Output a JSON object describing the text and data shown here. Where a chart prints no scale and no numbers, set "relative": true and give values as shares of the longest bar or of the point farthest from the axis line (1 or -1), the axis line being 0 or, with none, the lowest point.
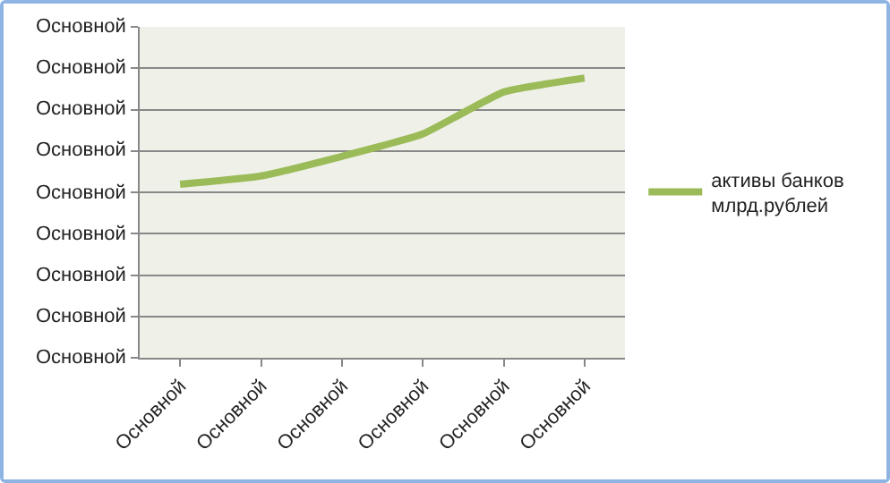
{
  "chart_data": {
    "type": "line",
    "relative": true,
    "categories": [
      "Основной",
      "Основной",
      "Основной",
      "Основной",
      "Основной",
      "Основной"
    ],
    "series": [
      {
        "name": "активы банков млрд.рублей",
        "color": "#9bbb59",
        "values": [
          0.62,
          0.65,
          0.72,
          0.8,
          0.95,
          1
        ]
      }
    ],
    "annotations": [
      "Основной",
      "Основной",
      "Основной",
      "Основной",
      "Основной",
      "Основной",
      "Основной",
      "Основной",
      "Основной"
    ],
    "grid": "y",
    "legend": "right",
    "marker": "none",
    "line_style": "solid"
  }
}
